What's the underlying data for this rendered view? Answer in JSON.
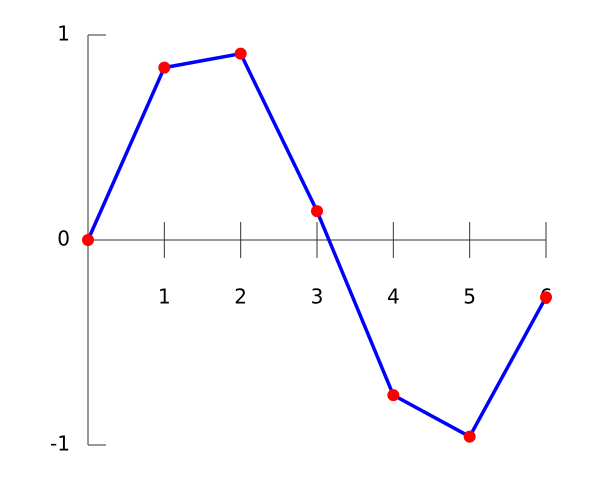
{
  "chart_data": {
    "type": "line",
    "x": [
      0,
      1,
      2,
      3,
      4,
      5,
      6
    ],
    "values": [
      0,
      0.841,
      0.909,
      0.141,
      -0.757,
      -0.959,
      -0.279
    ],
    "color": "#0000ff",
    "marker_color": "#ff0000",
    "xlim": [
      0,
      6
    ],
    "xticks": [
      1,
      2,
      3,
      4,
      5,
      6
    ],
    "ylim": [
      -1,
      1
    ],
    "yticks": [
      -1,
      0,
      1
    ]
  }
}
